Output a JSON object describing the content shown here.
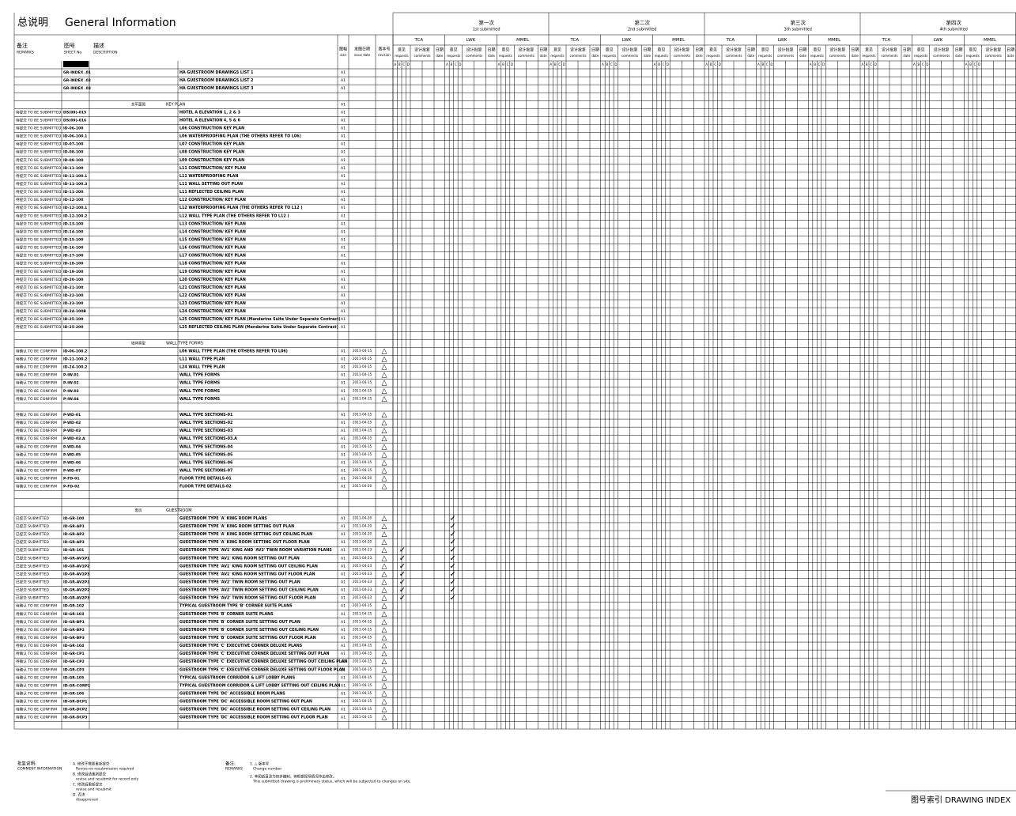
{
  "header": {
    "title_cn": "总说明",
    "title": "General Information",
    "columns": {
      "remarks": "备注",
      "remarks_en": "REMARKS",
      "sheet": "图号",
      "sheet_en": "SHEET No.",
      "desc": "描述",
      "desc_en": "DESCRIPTION",
      "size": "图幅",
      "size_en": "size",
      "date": "发图日期",
      "date_en": "issue date",
      "rev": "版本号",
      "rev_en": "revision"
    }
  },
  "submissions": [
    {
      "cn": "第一次",
      "en": "1st submitted"
    },
    {
      "cn": "第二次",
      "en": "2nd submitted"
    },
    {
      "cn": "第三次",
      "en": "3th submitted"
    },
    {
      "cn": "第四次",
      "en": "4th submitted"
    }
  ],
  "groups": [
    "TCA",
    "LWK",
    "MMEL"
  ],
  "subheaders": [
    {
      "cn": "意见",
      "en": "requests"
    },
    {
      "cn": "设计批复",
      "en": "comments"
    },
    {
      "cn": "日期",
      "en": "date"
    }
  ],
  "codes": [
    "A",
    "B",
    "C",
    "D"
  ],
  "rows": [
    {
      "sheet": "GR-INDEX .01",
      "desc": "HA GUESTROOM DRAWINGS LIST 1",
      "size": "A1"
    },
    {
      "sheet": "GR-INDEX .02",
      "desc": "HA GUESTROOM DRAWINGS LIST 2",
      "size": "A1"
    },
    {
      "sheet": "GR-INDEX .03",
      "desc": "HA GUESTROOM DRAWINGS LIST 3",
      "size": "A1"
    },
    null,
    {
      "section_cn": "总平面图",
      "section": "KEY PLAN",
      "size": "A1"
    },
    {
      "remark": "待提交 TO BE SUBMITTED",
      "sheet": "DS(09)-015",
      "desc": "HOTEL A ELEVATION 1, 2 & 3",
      "size": "A1"
    },
    {
      "remark": "待提交 TO BE SUBMITTED",
      "sheet": "DS(09)-016",
      "desc": "HOTEL A ELEVATION 4, 5 & 6",
      "size": "A1"
    },
    {
      "remark": "待提交 TO BE SUBMITTED",
      "sheet": "ID-06-100",
      "desc": "L06 CONSTRUCTION KEY PLAN",
      "size": "A1"
    },
    {
      "remark": "待提交 TO BE SUBMITTED",
      "sheet": "ID-06-100.1",
      "desc": "L06 WATERPROOFING PLAN (THE OTHERS REFER TO L06)",
      "size": "A1"
    },
    {
      "remark": "待提交 TO BE SUBMITTED",
      "sheet": "ID-07-100",
      "desc": "L07 CONSTRUCTION KEY PLAN",
      "size": "A1"
    },
    {
      "remark": "待提交 TO BE SUBMITTED",
      "sheet": "ID-08-100",
      "desc": "L08 CONSTRUCTION KEY PLAN",
      "size": "A1"
    },
    {
      "remark": "待提交 TO BE SUBMITTED",
      "sheet": "ID-09-100",
      "desc": "L09 CONSTRUCTION KEY PLAN",
      "size": "A1"
    },
    {
      "remark": "待提交 TO BE SUBMITTED",
      "sheet": "ID-11-100",
      "desc": "L11 CONSTRUCTION/ KEY PLAN",
      "size": "A1"
    },
    {
      "remark": "待提交 TO BE SUBMITTED",
      "sheet": "ID-11-100.1",
      "desc": "L11 WATERPROOFING PLAN",
      "size": "A1"
    },
    {
      "remark": "待提交 TO BE SUBMITTED",
      "sheet": "ID-11-100.3",
      "desc": "L11 WALL SETTING OUT PLAN",
      "size": "A1"
    },
    {
      "remark": "待提交 TO BE SUBMITTED",
      "sheet": "ID-11-200",
      "desc": "L11 REFLECTED CEILING PLAN",
      "size": "A1"
    },
    {
      "remark": "待提交 TO BE SUBMITTED",
      "sheet": "ID-12-100",
      "desc": "L12 CONSTRUCTION/ KEY PLAN",
      "size": "A1"
    },
    {
      "remark": "待提交 TO BE SUBMITTED",
      "sheet": "ID-12-100.1",
      "desc": "L12 WATERPROOFING PLAN (THE OTHERS REFER TO L12 )",
      "size": "A1"
    },
    {
      "remark": "待提交 TO BE SUBMITTED",
      "sheet": "ID-12-100.2",
      "desc": "L12 WALL TYPE PLAN (THE OTHERS REFER TO L12 )",
      "size": "A1"
    },
    {
      "remark": "待提交 TO BE SUBMITTED",
      "sheet": "ID-13-100",
      "desc": "L13 CONSTRUCTION/ KEY PLAN",
      "size": "A1"
    },
    {
      "remark": "待提交 TO BE SUBMITTED",
      "sheet": "ID-14-100",
      "desc": "L14 CONSTRUCTION/ KEY PLAN",
      "size": "A1"
    },
    {
      "remark": "待提交 TO BE SUBMITTED",
      "sheet": "ID-15-100",
      "desc": "L15 CONSTRUCTION/ KEY PLAN",
      "size": "A1"
    },
    {
      "remark": "待提交 TO BE SUBMITTED",
      "sheet": "ID-16-100",
      "desc": "L16 CONSTRUCTION/ KEY PLAN",
      "size": "A1"
    },
    {
      "remark": "待提交 TO BE SUBMITTED",
      "sheet": "ID-17-100",
      "desc": "L17 CONSTRUCTION/ KEY PLAN",
      "size": "A1"
    },
    {
      "remark": "待提交 TO BE SUBMITTED",
      "sheet": "ID-18-100",
      "desc": "L18 CONSTRUCTION/ KEY PLAN",
      "size": "A1"
    },
    {
      "remark": "待提交 TO BE SUBMITTED",
      "sheet": "ID-19-100",
      "desc": "L19 CONSTRUCTION/ KEY PLAN",
      "size": "A1"
    },
    {
      "remark": "待提交 TO BE SUBMITTED",
      "sheet": "ID-20-100",
      "desc": "L20 CONSTRUCTION/ KEY PLAN",
      "size": "A1"
    },
    {
      "remark": "待提交 TO BE SUBMITTED",
      "sheet": "ID-21-100",
      "desc": "L21 CONSTRUCTION/ KEY PLAN",
      "size": "A1"
    },
    {
      "remark": "待提交 TO BE SUBMITTED",
      "sheet": "ID-22-100",
      "desc": "L22 CONSTRUCTION/ KEY PLAN",
      "size": "A1"
    },
    {
      "remark": "待提交 TO BE SUBMITTED",
      "sheet": "ID-23-100",
      "desc": "L23 CONSTRUCTION/ KEY PLAN",
      "size": "A1"
    },
    {
      "remark": "待提交 TO BE SUBMITTED",
      "sheet": "ID-24-100B",
      "desc": "L24 CONSTRUCTION/ KEY PLAN",
      "size": "A1"
    },
    {
      "remark": "待提交 TO BE SUBMITTED",
      "sheet": "ID-25-100",
      "desc": "L25 CONSTRUCTION/ KEY PLAN (Mandarine Suite Under Separate Contract)",
      "size": "A1"
    },
    {
      "remark": "待提交 TO BE SUBMITTED",
      "sheet": "ID-25-200",
      "desc": "L25 REFLECTED CEILING PLAN (Mandarine Suite Under Separate Contract)",
      "size": "A1"
    },
    null,
    {
      "section_cn": "墙体类型",
      "section": "WALL TYPE FORMS"
    },
    {
      "remark": "待确认 TO BE CONFIRM",
      "sheet": "ID-06-100.2",
      "desc": "L06 WALL TYPE PLAN    (THE OTHERS REFER TO L06)",
      "size": "A1",
      "date": "2011-04-15",
      "rev": "△"
    },
    {
      "remark": "待确认 TO BE CONFIRM",
      "sheet": "ID-11-100.2",
      "desc": "L11 WALL TYPE PLAN",
      "size": "A1",
      "date": "2011-04-15",
      "rev": "△"
    },
    {
      "remark": "待确认 TO BE CONFIRM",
      "sheet": "ID-24-100.2",
      "desc": "L24 WALL TYPE PLAN",
      "size": "A1",
      "date": "2011-04-15",
      "rev": "△"
    },
    {
      "remark": "待确认 TO BE CONFIRM",
      "sheet": "P-IW.01",
      "desc": "WALL TYPE FORMS",
      "size": "A1",
      "date": "2011-04-15",
      "rev": "△"
    },
    {
      "remark": "待确认 TO BE CONFIRM",
      "sheet": "P-IW.02",
      "desc": "WALL TYPE FORMS",
      "size": "A1",
      "date": "2011-04-15",
      "rev": "△"
    },
    {
      "remark": "待确认 TO BE CONFIRM",
      "sheet": "P-IW.03",
      "desc": "WALL TYPE FORMS",
      "size": "A1",
      "date": "2011-04-15",
      "rev": "△"
    },
    {
      "remark": "待确认 TO BE CONFIRM",
      "sheet": "P-IW.04",
      "desc": "WALL TYPE FORMS",
      "size": "A1",
      "date": "2011-04-15",
      "rev": "△"
    },
    null,
    {
      "remark": "待确认 TO BE CONFIRM",
      "sheet": "P-WD-01",
      "desc": "WALL TYPE SECTIONS-01",
      "size": "A1",
      "date": "2011-04-15",
      "rev": "△"
    },
    {
      "remark": "待确认 TO BE CONFIRM",
      "sheet": "P-WD-02",
      "desc": "WALL TYPE SECTIONS-02",
      "size": "A1",
      "date": "2011-04-15",
      "rev": "△"
    },
    {
      "remark": "待确认 TO BE CONFIRM",
      "sheet": "P-WD-03",
      "desc": "WALL TYPE SECTIONS-03",
      "size": "A1",
      "date": "2011-04-15",
      "rev": "△"
    },
    {
      "remark": "待确认 TO BE CONFIRM",
      "sheet": "P-WD-03.A",
      "desc": "WALL TYPE SECTIONS-03.A",
      "size": "A1",
      "date": "2011-04-15",
      "rev": "△"
    },
    {
      "remark": "待确认 TO BE CONFIRM",
      "sheet": "P-WD-04",
      "desc": "WALL TYPE SECTIONS-04",
      "size": "A1",
      "date": "2011-04-15",
      "rev": "△"
    },
    {
      "remark": "待确认 TO BE CONFIRM",
      "sheet": "P-WD-05",
      "desc": "WALL TYPE SECTIONS-05",
      "size": "A1",
      "date": "2011-04-15",
      "rev": "△"
    },
    {
      "remark": "待确认 TO BE CONFIRM",
      "sheet": "P-WD-06",
      "desc": "WALL TYPE SECTIONS-06",
      "size": "A1",
      "date": "2011-04-15",
      "rev": "△"
    },
    {
      "remark": "待确认 TO BE CONFIRM",
      "sheet": "P-WD-07",
      "desc": "WALL TYPE SECTIONS-07",
      "size": "A1",
      "date": "2011-04-15",
      "rev": "△"
    },
    {
      "remark": "待确认 TO BE CONFIRM",
      "sheet": "P-FD-01",
      "desc": "FLOOR TYPE DETAILS-01",
      "size": "A1",
      "date": "2011-04-20",
      "rev": "△"
    },
    {
      "remark": "待确认 TO BE CONFIRM",
      "sheet": "P-FD-02",
      "desc": "FLOOR TYPE DETAILS-02",
      "size": "A1",
      "date": "2011-04-20",
      "rev": "△"
    },
    null,
    null,
    {
      "section_cn": "客房",
      "section": "GUESTROOM"
    },
    {
      "remark": "已提交 SUBMITTED",
      "sheet": "ID-GR-100",
      "desc": "GUESTROOM TYPE 'A' KING ROOM PLANS",
      "size": "A1",
      "date": "2011-04-20",
      "rev": "△",
      "lwk": "✓"
    },
    {
      "remark": "已提交 SUBMITTED",
      "sheet": "ID-GR-AP1",
      "desc": "GUESTROOM TYPE 'A' KING ROOM SETTING OUT PLAN",
      "size": "A1",
      "date": "2011-04-20",
      "rev": "△",
      "lwk": "✓"
    },
    {
      "remark": "已提交 SUBMITTED",
      "sheet": "ID-GR-AP2",
      "desc": "GUESTROOM TYPE 'A' KING ROOM SETTING OUT CEILING PLAN",
      "size": "A1",
      "date": "2011-04-20",
      "rev": "△",
      "lwk": "✓"
    },
    {
      "remark": "已提交 SUBMITTED",
      "sheet": "ID-GR-AP3",
      "desc": "GUESTROOM TYPE 'A' KING ROOM SETTING OUT FLOOR PLAN",
      "size": "A1",
      "date": "2011-04-20",
      "rev": "△",
      "lwk": "✓"
    },
    {
      "remark": "已提交 SUBMITTED",
      "sheet": "ID-GR-101",
      "desc": "GUESTROOM TYPE 'AV1' KING AND 'AV2' TWIN ROOM VARIATION PLANS",
      "size": "A1",
      "date": "2011-04-23",
      "rev": "△",
      "tca": "✓",
      "lwk": "✓"
    },
    {
      "remark": "已提交 SUBMITTED",
      "sheet": "ID-GR-AV1P1",
      "desc": "GUESTROOM TYPE 'AV1' KING ROOM SETTING OUT PLAN",
      "size": "A1",
      "date": "2011-04-23",
      "rev": "△",
      "tca": "✓",
      "lwk": "✓"
    },
    {
      "remark": "已提交 SUBMITTED",
      "sheet": "ID-GR-AV1P2",
      "desc": "GUESTROOM TYPE 'AV1' KING ROOM SETTING OUT CEILING PLAN",
      "size": "A1",
      "date": "2011-04-23",
      "rev": "△",
      "tca": "✓",
      "lwk": "✓"
    },
    {
      "remark": "已提交 SUBMITTED",
      "sheet": "ID-GR-AV1P3",
      "desc": "GUESTROOM TYPE 'AV1' KING ROOM SETTING OUT FLOOR PLAN",
      "size": "A1",
      "date": "2011-04-23",
      "rev": "△",
      "tca": "✓",
      "lwk": "✓"
    },
    {
      "remark": "已提交 SUBMITTED",
      "sheet": "ID-GR-AV2P1",
      "desc": "GUESTROOM TYPE 'AV2' TWIN ROOM SETTING OUT PLAN",
      "size": "A1",
      "date": "2011-04-23",
      "rev": "△",
      "tca": "✓",
      "lwk": "✓"
    },
    {
      "remark": "已提交 SUBMITTED",
      "sheet": "ID-GR-AV2P2",
      "desc": "GUESTROOM TYPE 'AV2' TWIN ROOM SETTING OUT CEILING PLAN",
      "size": "A1",
      "date": "2011-04-23",
      "rev": "△",
      "tca": "✓",
      "lwk": "✓"
    },
    {
      "remark": "已提交 SUBMITTED",
      "sheet": "ID-GR-AV2P3",
      "desc": "GUESTROOM TYPE 'AV2' TWIN ROOM SETTING OUT FLOOR PLAN",
      "size": "A1",
      "date": "2011-04-23",
      "rev": "△",
      "tca": "✓",
      "lwk": "✓"
    },
    {
      "remark": "待确认 TO BE CONFIRM",
      "sheet": "ID-GR-102",
      "desc": "TYPICAL GUESTROOM TYPE 'B' CORNER SUITE PLANS",
      "size": "A1",
      "date": "2011-04-15",
      "rev": "△"
    },
    {
      "remark": "待确认 TO BE CONFIRM",
      "sheet": "ID-GR-103",
      "desc": "GUESTROOM TYPE 'B' CORNER SUITE PLANS",
      "size": "A1",
      "date": "2011-04-15",
      "rev": "△"
    },
    {
      "remark": "待确认 TO BE CONFIRM",
      "sheet": "ID-GR-BP1",
      "desc": "GUESTROOM TYPE 'B' CORNER SUITE SETTING OUT PLAN",
      "size": "A1",
      "date": "2011-04-15",
      "rev": "△"
    },
    {
      "remark": "待确认 TO BE CONFIRM",
      "sheet": "ID-GR-BP2",
      "desc": "GUESTROOM TYPE 'B' CORNER SUITE SETTING OUT CEILING PLAN",
      "size": "A1",
      "date": "2011-04-15",
      "rev": "△"
    },
    {
      "remark": "待确认 TO BE CONFIRM",
      "sheet": "ID-GR-BP3",
      "desc": "GUESTROOM TYPE 'B' CORNER SUITE SETTING OUT FLOOR PLAN",
      "size": "A1",
      "date": "2011-04-15",
      "rev": "△"
    },
    {
      "remark": "待确认 TO BE CONFIRM",
      "sheet": "ID-GR-104",
      "desc": "GUESTROOM TYPE 'C' EXECUTIVE CORNER DELUXE PLANS",
      "size": "A1",
      "date": "2011-04-15",
      "rev": "△"
    },
    {
      "remark": "待确认 TO BE CONFIRM",
      "sheet": "ID-GR-CP1",
      "desc": "GUESTROOM TYPE 'C' EXECUTIVE CORNER DELUXE SETTING OUT PLAN",
      "size": "A1",
      "date": "2011-04-15",
      "rev": "△"
    },
    {
      "remark": "待确认 TO BE CONFIRM",
      "sheet": "ID-GR-CP2",
      "desc": "GUESTROOM TYPE 'C' EXECUTIVE CORNER DELUXE SETTING OUT CEILING PLAN",
      "size": "A1",
      "date": "2011-04-15",
      "rev": "△"
    },
    {
      "remark": "待确认 TO BE CONFIRM",
      "sheet": "ID-GR-CP3",
      "desc": "GUESTROOM TYPE 'C' EXECUTIVE CORNER DELUXE SETTING OUT FLOOR PLAN",
      "size": "A1",
      "date": "2011-04-15",
      "rev": "△"
    },
    {
      "remark": "待确认 TO BE CONFIRM",
      "sheet": "ID-GR-105",
      "desc": "TYPICAL GUESTROOM CORRIDOR & LIFT LOBBY PLANS",
      "size": "A1",
      "date": "2011-04-15",
      "rev": "△"
    },
    {
      "remark": "待确认 TO BE CONFIRM",
      "sheet": "ID-GR-CORP1",
      "desc": "TYPICAL GUESTROOM CORRIDOR & LIFT LOBBY SETTING OUT CEILING PLAN",
      "size": "A1",
      "date": "2011-04-15",
      "rev": "△"
    },
    {
      "remark": "待确认 TO BE CONFIRM",
      "sheet": "ID-GR-106",
      "desc": "GUESTROOM TYPE 'DC' ACCESSIBLE ROOM PLANS",
      "size": "A1",
      "date": "2011-04-15",
      "rev": "△"
    },
    {
      "remark": "待确认 TO BE CONFIRM",
      "sheet": "ID-GR-DCP1",
      "desc": "GUESTROOM TYPE 'DC' ACCESSIBLE ROOM SETTING OUT PLAN",
      "size": "A1",
      "date": "2011-04-15",
      "rev": "△"
    },
    {
      "remark": "待确认 TO BE CONFIRM",
      "sheet": "ID-GR-DCP2",
      "desc": "GUESTROOM TYPE 'DC' ACCESSIBLE ROOM SETTING OUT CEILING PLAN",
      "size": "A1",
      "date": "2011-04-15",
      "rev": "△"
    },
    {
      "remark": "待确认 TO BE CONFIRM",
      "sheet": "ID-GR-DCP3",
      "desc": "GUESTROOM TYPE 'DC' ACCESSIBLE ROOM SETTING OUT FLOOR PLAN",
      "size": "A1",
      "date": "2011-04-15",
      "rev": "△"
    }
  ],
  "footer": {
    "comment_cn": "批复说明:",
    "comment": "COMMENT INFORMATION",
    "codes": [
      {
        "cn": "A. 修改不需要重新提交",
        "en": "Revise-no resubmission required"
      },
      {
        "cn": "B. 修改后请重新提交",
        "en": "revise and resubmit for record only"
      },
      {
        "cn": "C. 修改后重新提交",
        "en": "revise and resubmit"
      },
      {
        "cn": "D. 否决",
        "en": "disapproved"
      }
    ],
    "remarks_cn": "备注:",
    "remarks": "REMARKS",
    "notes": [
      {
        "cn": "1. △ 版本号",
        "en": "Change number"
      },
      {
        "cn": "2. 本图纸目录为初步编制，将根据现场情况作出修改。",
        "en": "This submitted drawing is preliminary status, which will be subjected to changes on site."
      }
    ],
    "sheet_title": "图号索引 DRAWING INDEX"
  }
}
